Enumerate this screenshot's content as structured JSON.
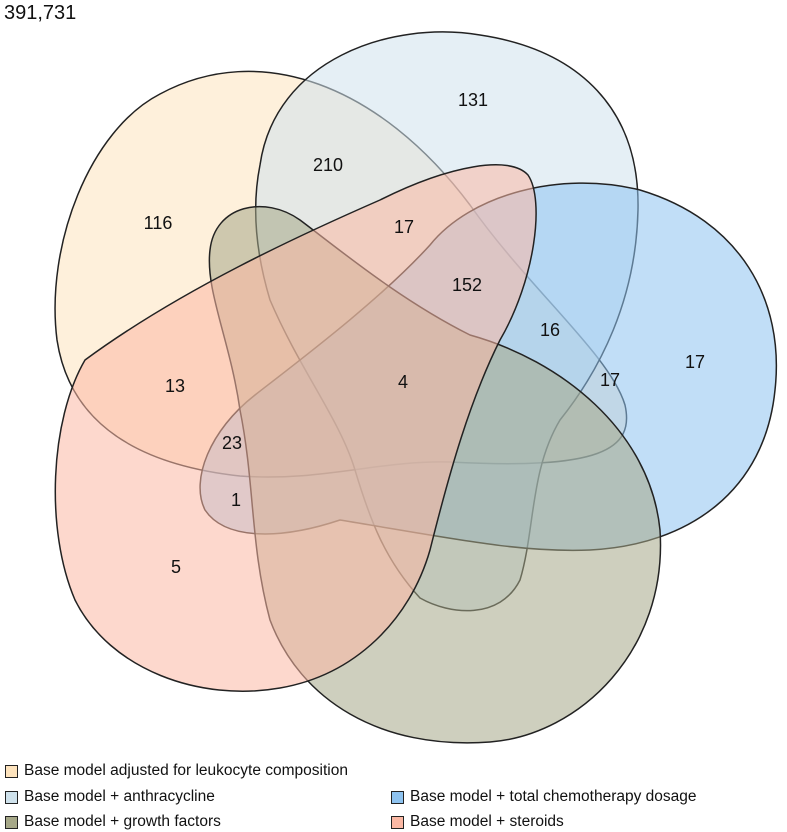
{
  "total": "391,731",
  "sets": [
    {
      "id": "leukocyte",
      "label": "Base model adjusted for leukocyte composition",
      "color": "#fde3bd"
    },
    {
      "id": "anthracycline",
      "label": "Base model + anthracycline",
      "color": "#cfe2ec"
    },
    {
      "id": "chemo",
      "label": "Base model + total chemotherapy dosage",
      "color": "#8ec3f0"
    },
    {
      "id": "growth",
      "label": "Base model + growth factors",
      "color": "#a6a888"
    },
    {
      "id": "steroids",
      "label": "Base model + steroids",
      "color": "#fbb8a4"
    }
  ],
  "regions": [
    {
      "value": "131"
    },
    {
      "value": "210"
    },
    {
      "value": "116"
    },
    {
      "value": "17"
    },
    {
      "value": "152"
    },
    {
      "value": "16"
    },
    {
      "value": "17"
    },
    {
      "value": "17"
    },
    {
      "value": "13"
    },
    {
      "value": "4"
    },
    {
      "value": "23"
    },
    {
      "value": "1"
    },
    {
      "value": "5"
    }
  ]
}
